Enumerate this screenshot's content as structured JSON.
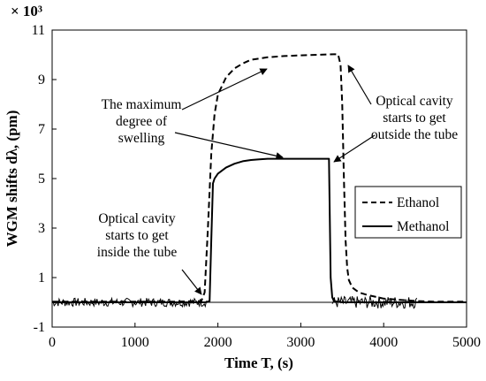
{
  "chart_data": {
    "type": "line",
    "title": "",
    "xlabel": "Time T, (s)",
    "ylabel": "WGM shifts dλ, (pm)",
    "y_multiplier": "× 10³",
    "xlim": [
      0,
      5000
    ],
    "ylim": [
      -1,
      11
    ],
    "x_ticks": [
      "0",
      "1000",
      "2000",
      "3000",
      "4000",
      "5000"
    ],
    "y_ticks": [
      "-1",
      "1",
      "3",
      "5",
      "7",
      "9",
      "11"
    ],
    "grid": false,
    "legend_position": "right",
    "series": [
      {
        "name": "Ethanol",
        "style": "dashed",
        "color": "#000000",
        "x": [
          0,
          500,
          1000,
          1500,
          1800,
          1840,
          1880,
          1920,
          1960,
          2000,
          2100,
          2200,
          2300,
          2400,
          2500,
          2600,
          2800,
          3000,
          3200,
          3400,
          3450,
          3480,
          3500,
          3520,
          3540,
          3560,
          3580,
          3620,
          3700,
          3800,
          4000,
          4200,
          4400,
          4600,
          4800,
          5000
        ],
        "y": [
          0.03,
          0.03,
          0.03,
          0.03,
          0.05,
          0.4,
          3.0,
          6.0,
          7.6,
          8.4,
          9.1,
          9.45,
          9.65,
          9.8,
          9.85,
          9.9,
          9.95,
          9.98,
          10.0,
          10.02,
          10.02,
          9.6,
          8.0,
          5.0,
          2.5,
          1.4,
          0.9,
          0.6,
          0.4,
          0.3,
          0.15,
          0.1,
          0.05,
          0.03,
          0.03,
          0.03
        ]
      },
      {
        "name": "Methanol",
        "style": "solid",
        "color": "#000000",
        "x": [
          0,
          500,
          1000,
          1500,
          1850,
          1900,
          1920,
          1940,
          1960,
          2000,
          2100,
          2200,
          2300,
          2400,
          2500,
          2600,
          2800,
          3000,
          3200,
          3340,
          3350,
          3360,
          3380,
          3400,
          3500,
          3800,
          4000,
          4400,
          5000
        ],
        "y": [
          0.0,
          0.0,
          0.0,
          0.0,
          0.0,
          0.05,
          2.5,
          4.8,
          5.0,
          5.2,
          5.45,
          5.6,
          5.7,
          5.75,
          5.78,
          5.8,
          5.8,
          5.8,
          5.8,
          5.8,
          3.5,
          1.0,
          0.2,
          0.05,
          0.0,
          0.0,
          0.0,
          0.0,
          0.0
        ]
      }
    ],
    "annotations": [
      {
        "lines": [
          "The maximum",
          "degree of",
          "swelling"
        ]
      },
      {
        "lines": [
          "Optical cavity",
          "starts to get",
          "outside the tube"
        ]
      },
      {
        "lines": [
          "Optical cavity",
          "starts to get",
          "inside the tube"
        ]
      }
    ],
    "legend": [
      "Ethanol",
      "Methanol"
    ]
  }
}
